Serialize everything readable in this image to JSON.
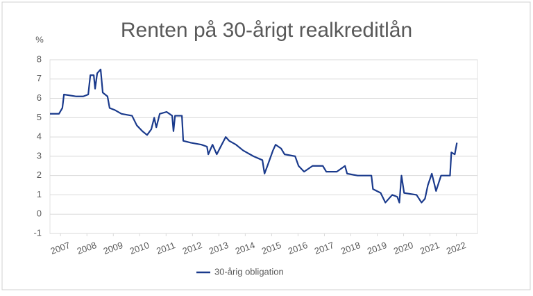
{
  "chart_data": {
    "type": "line",
    "title": "Renten på 30-årigt realkreditlån",
    "y_label": "%",
    "xlim": [
      2006.6,
      2022.8
    ],
    "xticks": [
      2007,
      2008,
      2009,
      2010,
      2011,
      2012,
      2013,
      2014,
      2015,
      2016,
      2017,
      2018,
      2019,
      2020,
      2021,
      2022
    ],
    "ylim": [
      -1,
      8
    ],
    "yticks": [
      -1,
      0,
      1,
      2,
      3,
      4,
      5,
      6,
      7,
      8
    ],
    "grid": true,
    "legend": "bottom",
    "x": [
      2006.6,
      2006.94,
      2007.07,
      2007.13,
      2007.6,
      2007.86,
      2008.05,
      2008.13,
      2008.26,
      2008.31,
      2008.39,
      2008.52,
      2008.6,
      2008.78,
      2008.86,
      2009.05,
      2009.31,
      2009.71,
      2009.89,
      2010.1,
      2010.28,
      2010.44,
      2010.55,
      2010.63,
      2010.76,
      2011.02,
      2011.23,
      2011.28,
      2011.34,
      2011.6,
      2011.65,
      2011.94,
      2012.34,
      2012.55,
      2012.6,
      2012.76,
      2012.92,
      2013.07,
      2013.26,
      2013.39,
      2013.65,
      2013.92,
      2014.31,
      2014.65,
      2014.73,
      2014.84,
      2015.05,
      2015.15,
      2015.36,
      2015.49,
      2015.89,
      2016.02,
      2016.23,
      2016.55,
      2016.94,
      2017.07,
      2017.47,
      2017.78,
      2017.86,
      2018.26,
      2018.78,
      2018.84,
      2019.13,
      2019.31,
      2019.57,
      2019.76,
      2019.84,
      2019.92,
      2020.02,
      2020.49,
      2020.68,
      2020.81,
      2020.92,
      2021.07,
      2021.23,
      2021.42,
      2021.76,
      2021.81,
      2021.94,
      2022.02
    ],
    "series": [
      {
        "name": "30-årig obligation",
        "color": "#1a3a8c",
        "values": [
          5.2,
          5.2,
          5.5,
          6.2,
          6.1,
          6.1,
          6.2,
          7.2,
          7.2,
          6.5,
          7.3,
          7.5,
          6.3,
          6.1,
          5.5,
          5.4,
          5.2,
          5.1,
          4.6,
          4.3,
          4.1,
          4.4,
          5.0,
          4.5,
          5.2,
          5.3,
          5.1,
          4.3,
          5.1,
          5.1,
          3.8,
          3.7,
          3.6,
          3.5,
          3.1,
          3.6,
          3.1,
          3.5,
          4.0,
          3.8,
          3.6,
          3.3,
          3.0,
          2.8,
          2.1,
          2.5,
          3.3,
          3.6,
          3.4,
          3.1,
          3.0,
          2.5,
          2.2,
          2.5,
          2.5,
          2.2,
          2.2,
          2.5,
          2.1,
          2.0,
          2.0,
          1.3,
          1.1,
          0.6,
          1.0,
          0.9,
          0.6,
          2.0,
          1.1,
          1.0,
          0.6,
          0.8,
          1.5,
          2.1,
          1.2,
          2.0,
          2.0,
          3.2,
          3.1,
          3.7
        ]
      }
    ]
  }
}
